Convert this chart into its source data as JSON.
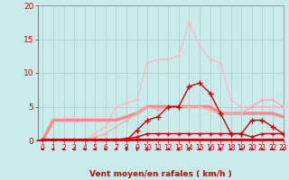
{
  "background_color": "#c8ecec",
  "grid_color": "#aacccc",
  "xlabel": "Vent moyen/en rafales ( km/h )",
  "xlabel_color": "#cc0000",
  "tick_color": "#cc0000",
  "xlim": [
    -0.5,
    23
  ],
  "ylim": [
    0,
    20
  ],
  "yticks": [
    0,
    5,
    10,
    15,
    20
  ],
  "xticks": [
    0,
    1,
    2,
    3,
    4,
    5,
    6,
    7,
    8,
    9,
    10,
    11,
    12,
    13,
    14,
    15,
    16,
    17,
    18,
    19,
    20,
    21,
    22,
    23
  ],
  "series": [
    {
      "x": [
        0,
        1,
        2,
        3,
        4,
        5,
        6,
        7,
        8,
        9,
        10,
        11,
        12,
        13,
        14,
        15,
        16,
        17,
        18,
        19,
        20,
        21,
        22,
        23
      ],
      "y": [
        0,
        0,
        0,
        0,
        0,
        0,
        0,
        0,
        0,
        0,
        0,
        0,
        0,
        0,
        0,
        0,
        0,
        0,
        0,
        0,
        0,
        0,
        0,
        0
      ],
      "color": "#cc0000",
      "lw": 3.5,
      "marker": null,
      "zorder": 5
    },
    {
      "x": [
        0,
        1,
        2,
        3,
        4,
        5,
        6,
        7,
        8,
        9,
        10,
        11,
        12,
        13,
        14,
        15,
        16,
        17,
        18,
        19,
        20,
        21,
        22,
        23
      ],
      "y": [
        0,
        0,
        0,
        0,
        0,
        0,
        0,
        0.1,
        0.3,
        0.5,
        1,
        1,
        1,
        1,
        1,
        1,
        1,
        1,
        1,
        1,
        0.5,
        1,
        1,
        1
      ],
      "color": "#cc0000",
      "lw": 1.0,
      "marker": "+",
      "ms": 3,
      "zorder": 6
    },
    {
      "x": [
        0,
        1,
        2,
        3,
        4,
        5,
        6,
        7,
        8,
        9,
        10,
        11,
        12,
        13,
        14,
        15,
        16,
        17,
        18,
        19,
        20,
        21,
        22,
        23
      ],
      "y": [
        0,
        0,
        0,
        0,
        0,
        0,
        0,
        0,
        0,
        1.5,
        3,
        3.5,
        5,
        5,
        8,
        8.5,
        7,
        4,
        1,
        1,
        3,
        3,
        2,
        1
      ],
      "color": "#cc0000",
      "lw": 1.0,
      "marker": "+",
      "ms": 4,
      "zorder": 5
    },
    {
      "x": [
        0,
        1,
        2,
        3,
        4,
        5,
        6,
        7,
        8,
        9,
        10,
        11,
        12,
        13,
        14,
        15,
        16,
        17,
        18,
        19,
        20,
        21,
        22,
        23
      ],
      "y": [
        0,
        3,
        3,
        3,
        3,
        3,
        3,
        3,
        3.5,
        4,
        5,
        5,
        5,
        5,
        5,
        5,
        5,
        4,
        4,
        4,
        4,
        4,
        4,
        3.5
      ],
      "color": "#ff8888",
      "lw": 2.5,
      "marker": null,
      "zorder": 3
    },
    {
      "x": [
        0,
        1,
        2,
        3,
        4,
        5,
        6,
        7,
        8,
        9,
        10,
        11,
        12,
        13,
        14,
        15,
        16,
        17,
        18,
        19,
        20,
        21,
        22,
        23
      ],
      "y": [
        0,
        0,
        0,
        0,
        0,
        0.5,
        1,
        2,
        3,
        4,
        5,
        4.5,
        5,
        5,
        5,
        5,
        4.5,
        4,
        4,
        4,
        5,
        6,
        6,
        5
      ],
      "color": "#ffaaaa",
      "lw": 1.0,
      "marker": "+",
      "ms": 3,
      "zorder": 4
    },
    {
      "x": [
        0,
        1,
        2,
        3,
        4,
        5,
        6,
        7,
        8,
        9,
        10,
        11,
        12,
        13,
        14,
        15,
        16,
        17,
        18,
        19,
        20,
        21,
        22,
        23
      ],
      "y": [
        0,
        0,
        0,
        0,
        0,
        1,
        2,
        5,
        5.5,
        6,
        11.5,
        12,
        12,
        12.5,
        17.5,
        14,
        12,
        11.5,
        6,
        5,
        5,
        5,
        5,
        5
      ],
      "color": "#ffbbbb",
      "lw": 1.0,
      "marker": "+",
      "ms": 3,
      "zorder": 2
    }
  ],
  "wind_arrows": {
    "x": [
      0,
      1,
      2,
      3,
      4,
      5,
      6,
      7,
      8,
      9,
      10,
      11,
      12,
      13,
      14,
      15,
      16,
      17,
      18,
      19,
      20,
      21,
      22,
      23
    ],
    "dx": [
      -1,
      -1,
      -1,
      -1,
      -1,
      -1,
      -1,
      -0.7,
      0,
      0,
      0,
      -0.7,
      -0.7,
      0,
      0,
      -0.7,
      0,
      0,
      -1,
      1,
      1,
      0.7,
      0.7,
      -1
    ],
    "dy": [
      0,
      0,
      0,
      0,
      0,
      0,
      0,
      -0.7,
      -1,
      -1,
      -1,
      -0.7,
      -0.7,
      -1,
      -1,
      -0.7,
      -1,
      -1,
      0,
      0,
      0,
      -0.7,
      -0.7,
      0
    ],
    "color": "#cc0000"
  }
}
